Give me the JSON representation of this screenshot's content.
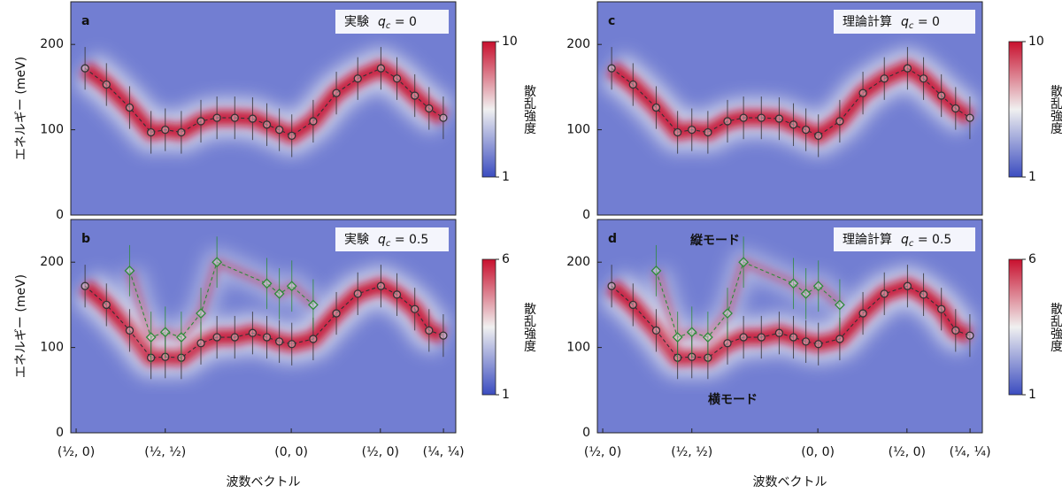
{
  "chart_data": [
    {
      "type": "heatmap",
      "label": "a",
      "annotation": "実験",
      "param": "q",
      "param_sub": "c",
      "param_rest": " = 0",
      "ylabel": "エネルギー (meV)",
      "ylim": [
        0,
        250
      ],
      "yticks": [
        0,
        100,
        200
      ],
      "xlim": [
        -0.03,
        2.13
      ],
      "colormap": [
        "#3b4cc0",
        "#f0f0f0",
        "#c8102e"
      ],
      "colorbar": {
        "label": "散乱強度",
        "lim": [
          1,
          10
        ],
        "ticks": [
          1,
          10
        ],
        "log": true
      },
      "series": [
        {
          "color": "#333333",
          "marker": "circle",
          "x": [
            0.05,
            0.17,
            0.3,
            0.42,
            0.5,
            0.59,
            0.7,
            0.79,
            0.89,
            0.99,
            1.07,
            1.14,
            1.21,
            1.33,
            1.46,
            1.58,
            1.71,
            1.8,
            1.9,
            1.98,
            2.06
          ],
          "values": [
            172,
            153,
            126,
            97,
            100,
            97,
            110,
            114,
            114,
            113,
            106,
            100,
            93,
            110,
            143,
            160,
            172,
            160,
            140,
            125,
            114
          ],
          "errors": [
            25,
            25,
            25,
            25,
            25,
            25,
            25,
            25,
            25,
            25,
            25,
            25,
            25,
            25,
            25,
            25,
            25,
            25,
            25,
            25,
            25
          ]
        }
      ]
    },
    {
      "type": "heatmap",
      "label": "b",
      "annotation": "実験",
      "param": "q",
      "param_sub": "c",
      "param_rest": " = 0.5",
      "ylabel": "エネルギー (meV)",
      "ylim": [
        0,
        250
      ],
      "yticks": [
        0,
        100,
        200
      ],
      "xlim": [
        -0.03,
        2.13
      ],
      "xlabel": "波数ベクトル",
      "xticks": [
        {
          "value": 0,
          "label": "(½, 0)"
        },
        {
          "value": 0.5,
          "label": "(½, ½)"
        },
        {
          "value": 1.207,
          "label": "(0, 0)"
        },
        {
          "value": 1.707,
          "label": "(½, 0)"
        },
        {
          "value": 2.061,
          "label": "(¼, ¼)"
        }
      ],
      "colormap": [
        "#3b4cc0",
        "#f0f0f0",
        "#c8102e"
      ],
      "colorbar": {
        "label": "散乱強度",
        "lim": [
          1,
          6
        ],
        "ticks": [
          1,
          6
        ],
        "log": true
      },
      "series": [
        {
          "color": "#333333",
          "marker": "circle",
          "x": [
            0.05,
            0.17,
            0.3,
            0.42,
            0.5,
            0.59,
            0.7,
            0.79,
            0.89,
            0.99,
            1.07,
            1.14,
            1.21,
            1.33,
            1.46,
            1.58,
            1.71,
            1.8,
            1.9,
            1.98,
            2.06
          ],
          "values": [
            172,
            150,
            120,
            88,
            89,
            88,
            105,
            112,
            112,
            117,
            112,
            107,
            104,
            110,
            140,
            163,
            172,
            162,
            145,
            120,
            114
          ],
          "errors": [
            25,
            25,
            25,
            25,
            25,
            25,
            25,
            25,
            25,
            25,
            25,
            25,
            25,
            25,
            25,
            25,
            25,
            25,
            25,
            25,
            25
          ]
        },
        {
          "color": "#2e8b3a",
          "marker": "diamond",
          "x": [
            0.3,
            0.42,
            0.5,
            0.59,
            0.7,
            0.79,
            1.07,
            1.14,
            1.21,
            1.33
          ],
          "values": [
            190,
            112,
            118,
            112,
            140,
            200,
            175,
            163,
            172,
            150
          ],
          "errors": [
            30,
            30,
            30,
            30,
            30,
            30,
            30,
            30,
            30,
            30
          ]
        }
      ]
    },
    {
      "type": "heatmap",
      "label": "c",
      "annotation": "理論計算",
      "param": "q",
      "param_sub": "c",
      "param_rest": " = 0",
      "ylim": [
        0,
        250
      ],
      "yticks": [
        0,
        100,
        200
      ],
      "xlim": [
        -0.03,
        2.13
      ],
      "colormap": [
        "#3b4cc0",
        "#f0f0f0",
        "#c8102e"
      ],
      "colorbar": {
        "label": "散乱強度",
        "lim": [
          1,
          10
        ],
        "ticks": [
          1,
          10
        ],
        "log": true
      },
      "series": [
        {
          "color": "#333333",
          "marker": "circle",
          "x": [
            0.05,
            0.17,
            0.3,
            0.42,
            0.5,
            0.59,
            0.7,
            0.79,
            0.89,
            0.99,
            1.07,
            1.14,
            1.21,
            1.33,
            1.46,
            1.58,
            1.71,
            1.8,
            1.9,
            1.98,
            2.06
          ],
          "values": [
            172,
            153,
            126,
            97,
            100,
            97,
            110,
            114,
            114,
            113,
            106,
            100,
            93,
            110,
            143,
            160,
            172,
            160,
            140,
            125,
            114
          ],
          "errors": [
            25,
            25,
            25,
            25,
            25,
            25,
            25,
            25,
            25,
            25,
            25,
            25,
            25,
            25,
            25,
            25,
            25,
            25,
            25,
            25,
            25
          ]
        }
      ]
    },
    {
      "type": "heatmap",
      "label": "d",
      "annotation": "理論計算",
      "param": "q",
      "param_sub": "c",
      "param_rest": " = 0.5",
      "ylim": [
        0,
        250
      ],
      "yticks": [
        0,
        100,
        200
      ],
      "xlim": [
        -0.03,
        2.13
      ],
      "xlabel": "波数ベクトル",
      "xticks": [
        {
          "value": 0,
          "label": "(½, 0)"
        },
        {
          "value": 0.5,
          "label": "(½, ½)"
        },
        {
          "value": 1.207,
          "label": "(0, 0)"
        },
        {
          "value": 1.707,
          "label": "(½, 0)"
        },
        {
          "value": 2.061,
          "label": "(¼, ¼)"
        }
      ],
      "colormap": [
        "#3b4cc0",
        "#f0f0f0",
        "#c8102e"
      ],
      "colorbar": {
        "label": "散乱強度",
        "lim": [
          1,
          6
        ],
        "ticks": [
          1,
          6
        ],
        "log": true
      },
      "annotations": [
        {
          "text": "縦モード",
          "color": "#2e8b3a"
        },
        {
          "text": "横モード",
          "color": "#111111"
        }
      ],
      "series": [
        {
          "color": "#333333",
          "marker": "circle",
          "x": [
            0.05,
            0.17,
            0.3,
            0.42,
            0.5,
            0.59,
            0.7,
            0.79,
            0.89,
            0.99,
            1.07,
            1.14,
            1.21,
            1.33,
            1.46,
            1.58,
            1.71,
            1.8,
            1.9,
            1.98,
            2.06
          ],
          "values": [
            172,
            150,
            120,
            88,
            89,
            88,
            105,
            112,
            112,
            117,
            112,
            107,
            104,
            110,
            140,
            163,
            172,
            162,
            145,
            120,
            114
          ],
          "errors": [
            25,
            25,
            25,
            25,
            25,
            25,
            25,
            25,
            25,
            25,
            25,
            25,
            25,
            25,
            25,
            25,
            25,
            25,
            25,
            25,
            25
          ]
        },
        {
          "color": "#2e8b3a",
          "marker": "diamond",
          "x": [
            0.3,
            0.42,
            0.5,
            0.59,
            0.7,
            0.79,
            1.07,
            1.14,
            1.21,
            1.33
          ],
          "values": [
            190,
            112,
            118,
            112,
            140,
            200,
            175,
            163,
            172,
            150
          ],
          "errors": [
            30,
            30,
            30,
            30,
            30,
            30,
            30,
            30,
            30,
            30
          ]
        }
      ]
    }
  ]
}
